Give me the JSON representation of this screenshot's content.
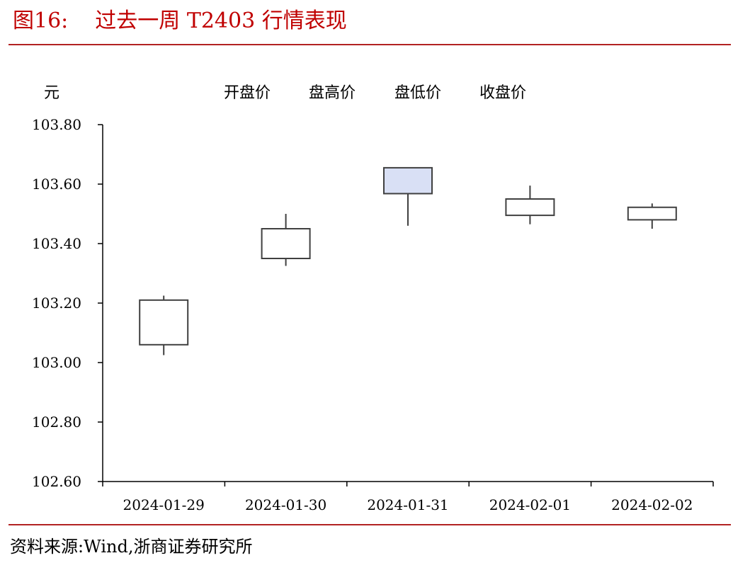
{
  "figure": {
    "number": "图16:",
    "title": "过去一周 T2403 行情表现",
    "source": "资料来源:Wind,浙商证券研究所"
  },
  "colors": {
    "title": "#c00000",
    "rule": "#b22222",
    "up_fill": "#ffffff",
    "down_fill": "#d9e0f5",
    "candle_stroke": "#404040",
    "axis": "#000000"
  },
  "chart_data": {
    "type": "candlestick",
    "ylabel": "元",
    "ylim": [
      102.6,
      103.8
    ],
    "yticks": [
      102.6,
      102.8,
      103.0,
      103.2,
      103.4,
      103.6,
      103.8
    ],
    "ytick_labels": [
      "102.60",
      "102.80",
      "103.00",
      "103.20",
      "103.40",
      "103.60",
      "103.80"
    ],
    "legend": [
      "开盘价",
      "盘高价",
      "盘低价",
      "收盘价"
    ],
    "legend_position": "top",
    "grid": false,
    "categories": [
      "2024-01-29",
      "2024-01-30",
      "2024-01-31",
      "2024-02-01",
      "2024-02-02"
    ],
    "open": [
      103.06,
      103.35,
      103.655,
      103.495,
      103.48
    ],
    "high": [
      103.225,
      103.5,
      103.655,
      103.595,
      103.535
    ],
    "low": [
      103.025,
      103.325,
      103.46,
      103.465,
      103.45
    ],
    "close": [
      103.21,
      103.45,
      103.568,
      103.55,
      103.522
    ]
  }
}
